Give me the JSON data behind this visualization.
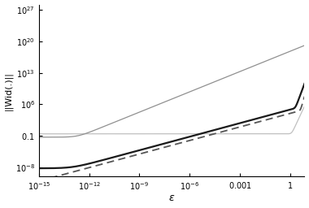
{
  "title": "",
  "xlabel": "ε",
  "ylabel": "||Wid(.)||",
  "xmin": 1e-15,
  "xmax": 7,
  "ymin": 1e-10,
  "ymax": 1e+28,
  "background_color": "#ffffff",
  "light_gray_color": "#c0c0c0",
  "medium_gray_color": "#909090",
  "dark_color": "#1a1a1a",
  "dashed_color": "#555555",
  "yticks": [
    1e-08,
    0.1,
    1000000.0,
    10000000000000.0,
    1e+20,
    1e+27
  ],
  "ytick_labels": [
    "$10^{-8}$",
    "$0.1$",
    "$10^6$",
    "$10^{13}$",
    "$10^{20}$",
    "$10^{27}$"
  ],
  "xticks": [
    1e-15,
    1e-12,
    1e-09,
    1e-06,
    0.001,
    1
  ],
  "xtick_labels": [
    "$10^{-15}$",
    "$10^{-12}$",
    "$10^{-9}$",
    "$10^{-6}$",
    "$0.001$",
    "$1$"
  ]
}
